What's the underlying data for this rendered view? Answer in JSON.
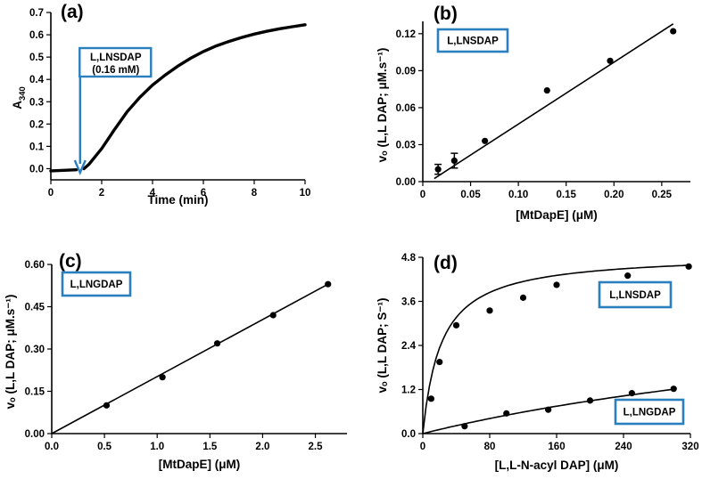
{
  "box_color": "#2a7fbf",
  "chart_data": [
    {
      "id": "a",
      "type": "line",
      "panel_label": "(a)",
      "xlabel": "Time (min)",
      "ylabel": {
        "base": "A",
        "sub": "340"
      },
      "xlim": [
        0,
        10
      ],
      "ylim": [
        -0.05,
        0.7
      ],
      "xticks": [
        "0",
        "2",
        "4",
        "6",
        "8",
        "10"
      ],
      "xtick_values": [
        0,
        2,
        4,
        6,
        8,
        10
      ],
      "yticks": [
        "0.0",
        "0.1",
        "0.2",
        "0.3",
        "0.4",
        "0.5",
        "0.6",
        "0.7"
      ],
      "ytick_values": [
        0,
        0.1,
        0.2,
        0.3,
        0.4,
        0.5,
        0.6,
        0.7
      ],
      "annotation": {
        "line1": "L,LNSDAP",
        "line2": "(0.16 mM)",
        "arrow_x": 1.15
      },
      "baseline": {
        "x": [
          0,
          1.0
        ],
        "y": [
          -0.01,
          -0.005
        ]
      },
      "trace": {
        "x": [
          1.3,
          1.5,
          2.0,
          2.5,
          3.0,
          3.5,
          4.0,
          4.5,
          5.0,
          5.5,
          6.0,
          6.5,
          7.0,
          7.5,
          8.0,
          8.5,
          9.0,
          9.5,
          10.0
        ],
        "y": [
          0.0,
          0.02,
          0.09,
          0.175,
          0.255,
          0.32,
          0.375,
          0.42,
          0.46,
          0.495,
          0.525,
          0.55,
          0.57,
          0.588,
          0.603,
          0.616,
          0.627,
          0.636,
          0.645
        ]
      }
    },
    {
      "id": "b",
      "type": "scatter",
      "panel_label": "(b)",
      "xlabel": "[MtDapE] (μM)",
      "ylabel": "vₒ (L,L DAP; μM.s⁻¹)",
      "xlim": [
        0,
        0.28
      ],
      "ylim": [
        0,
        0.13
      ],
      "xticks": [
        "0",
        "0.05",
        "0.10",
        "0.15",
        "0.20",
        "0.25"
      ],
      "xtick_values": [
        0,
        0.05,
        0.1,
        0.15,
        0.2,
        0.25
      ],
      "yticks": [
        "0.00",
        "0.03",
        "0.06",
        "0.09",
        "0.12"
      ],
      "ytick_values": [
        0,
        0.03,
        0.06,
        0.09,
        0.12
      ],
      "legend": "L,LNSDAP",
      "legend_position": "top-left",
      "points": {
        "x": [
          0.016,
          0.033,
          0.065,
          0.13,
          0.196,
          0.262
        ],
        "y": [
          0.01,
          0.017,
          0.033,
          0.074,
          0.098,
          0.122
        ],
        "err": [
          0.004,
          0.006,
          0,
          0,
          0,
          0
        ]
      },
      "fit": {
        "x": [
          0.012,
          0.262
        ],
        "y": [
          0.0025,
          0.128
        ]
      }
    },
    {
      "id": "c",
      "type": "scatter",
      "panel_label": "(c)",
      "xlabel": "[MtDapE] (μM)",
      "ylabel": "vₒ (L,L DAP; μM.s⁻¹)",
      "xlim": [
        0,
        2.8
      ],
      "ylim": [
        0,
        0.6
      ],
      "xticks": [
        "0.0",
        "0.5",
        "1.0",
        "1.5",
        "2.0",
        "2.5"
      ],
      "xtick_values": [
        0,
        0.5,
        1.0,
        1.5,
        2.0,
        2.5
      ],
      "yticks": [
        "0.00",
        "0.15",
        "0.30",
        "0.45",
        "0.60"
      ],
      "ytick_values": [
        0,
        0.15,
        0.3,
        0.45,
        0.6
      ],
      "legend": "L,LNGDAP",
      "legend_position": "top-left",
      "points": {
        "x": [
          0.52,
          1.05,
          1.57,
          2.1,
          2.62
        ],
        "y": [
          0.1,
          0.2,
          0.32,
          0.42,
          0.53
        ],
        "err": [
          0,
          0,
          0,
          0,
          0
        ]
      },
      "fit": {
        "x": [
          0,
          2.62
        ],
        "y": [
          0,
          0.53
        ]
      }
    },
    {
      "id": "d",
      "type": "scatter",
      "panel_label": "(d)",
      "xlabel": "[L,L-N-acyl DAP] (μM)",
      "ylabel": "vₒ (L,L DAP; S⁻¹)",
      "xlim": [
        0,
        320
      ],
      "ylim": [
        0,
        4.8
      ],
      "xticks": [
        "0",
        "80",
        "160",
        "240",
        "320"
      ],
      "xtick_values": [
        0,
        80,
        160,
        240,
        320
      ],
      "yticks": [
        "0.0",
        "1.2",
        "2.4",
        "3.6",
        "4.8"
      ],
      "ytick_values": [
        0,
        1.2,
        2.4,
        3.6,
        4.8
      ],
      "series": [
        {
          "name": "L,LNSDAP",
          "legend_position": "upper-right",
          "points": {
            "x": [
              10,
              20,
              40,
              80,
              120,
              160,
              245,
              318
            ],
            "y": [
              0.95,
              1.95,
              2.95,
              3.35,
              3.7,
              4.05,
              4.3,
              4.55
            ]
          },
          "fit": {
            "model": "michaelis-menten",
            "vmax": 4.9,
            "km": 22,
            "x_max": 318
          }
        },
        {
          "name": "L,LNGDAP",
          "legend_position": "lower-right",
          "points": {
            "x": [
              50,
              100,
              150,
              200,
              250,
              300
            ],
            "y": [
              0.2,
              0.55,
              0.65,
              0.9,
              1.1,
              1.22
            ]
          },
          "fit": {
            "model": "michaelis-menten",
            "vmax": 4.1,
            "km": 720,
            "x_max": 300
          }
        }
      ]
    }
  ]
}
